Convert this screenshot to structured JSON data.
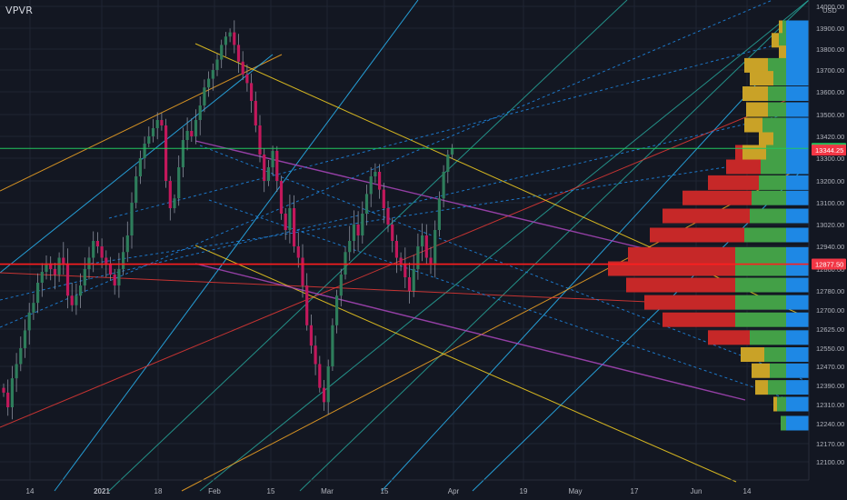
{
  "indicator": "VPVR",
  "chart_data": {
    "type": "candlestick",
    "currency": "USD",
    "y_ticks": [
      14000.0,
      13900.0,
      13800.0,
      13700.0,
      13600.0,
      13500.0,
      13420.0,
      13300.0,
      13200.0,
      13100.0,
      13020.0,
      12940.0,
      12860.0,
      12780.0,
      12700.0,
      12625.0,
      12550.0,
      12470.0,
      12390.0,
      12310.0,
      12240.0,
      12170.0,
      12100.0
    ],
    "y_tick_labels": [
      "14000.00",
      "13900.00",
      "13800.00",
      "13700.00",
      "13600.00",
      "13500.00",
      "13420.00",
      "13300.00",
      "13200.00",
      "13100.00",
      "13020.00",
      "12940.00",
      "12860.00",
      "12780.00",
      "12700.00",
      "12625.00",
      "12550.00",
      "12470.00",
      "12390.00",
      "12310.00",
      "12240.00",
      "12170.00",
      "12100.00"
    ],
    "x_labels": [
      "14",
      "2021",
      "18",
      "Feb",
      "15",
      "Mar",
      "15",
      "Apr",
      "19",
      "May",
      "17",
      "Jun",
      "14"
    ],
    "price_badges": [
      {
        "label": "13353.75",
        "value": 13353.75,
        "color": "#22c55e"
      },
      {
        "label": "13344.25",
        "value": 13344.25,
        "color": "#f23645"
      },
      {
        "label": "12877.50",
        "value": 12877.5,
        "color": "#f23645"
      }
    ],
    "horizontal_lines": [
      {
        "value": 13353.75,
        "color": "#22c55e"
      },
      {
        "value": 12877.5,
        "color": "#ff1e1e"
      }
    ],
    "closes": [
      12360,
      12300,
      12420,
      12480,
      12550,
      12620,
      12690,
      12730,
      12810,
      12850,
      12880,
      12860,
      12840,
      12900,
      12880,
      12760,
      12720,
      12760,
      12800,
      12860,
      12900,
      12960,
      12940,
      12900,
      12880,
      12840,
      12800,
      12860,
      12920,
      12980,
      13100,
      13220,
      13300,
      13380,
      13420,
      13450,
      13480,
      13460,
      13200,
      13080,
      13120,
      13260,
      13400,
      13440,
      13420,
      13480,
      13540,
      13620,
      13660,
      13700,
      13750,
      13820,
      13860,
      13880,
      13820,
      13740,
      13680,
      13640,
      13560,
      13460,
      13320,
      13200,
      13260,
      13340,
      13200,
      13060,
      13000,
      13080,
      12940,
      12900,
      12800,
      12640,
      12560,
      12480,
      12380,
      12320,
      12470,
      12640,
      12760,
      12840,
      12920,
      12960,
      13020,
      12980,
      13060,
      13140,
      13220,
      13240,
      13160,
      13080,
      13020,
      12960,
      12900,
      12880,
      12830,
      12780,
      12860,
      12940,
      12980,
      12900,
      12880,
      13000,
      13120,
      13240,
      13320,
      13355
    ],
    "volume_profile": [
      {
        "price": 13900,
        "red": 0,
        "green": 4,
        "gold": 4
      },
      {
        "price": 13840,
        "red": 0,
        "green": 8,
        "gold": 8
      },
      {
        "price": 13780,
        "red": 0,
        "green": 0,
        "gold": 8
      },
      {
        "price": 13720,
        "red": 0,
        "green": 20,
        "gold": 26
      },
      {
        "price": 13660,
        "red": 0,
        "green": 14,
        "gold": 26
      },
      {
        "price": 13590,
        "red": 0,
        "green": 20,
        "gold": 28
      },
      {
        "price": 13520,
        "red": 0,
        "green": 20,
        "gold": 24
      },
      {
        "price": 13460,
        "red": 0,
        "green": 26,
        "gold": 20
      },
      {
        "price": 13400,
        "red": 0,
        "green": 14,
        "gold": 16
      },
      {
        "price": 13330,
        "red": 8,
        "green": 22,
        "gold": 26
      },
      {
        "price": 13260,
        "red": 38,
        "green": 28,
        "gold": 0
      },
      {
        "price": 13190,
        "red": 56,
        "green": 30,
        "gold": 0
      },
      {
        "price": 13120,
        "red": 76,
        "green": 38,
        "gold": 0
      },
      {
        "price": 13050,
        "red": 96,
        "green": 40,
        "gold": 0
      },
      {
        "price": 12980,
        "red": 104,
        "green": 46,
        "gold": 0
      },
      {
        "price": 12910,
        "red": 118,
        "green": 56,
        "gold": 0
      },
      {
        "price": 12860,
        "red": 140,
        "green": 56,
        "gold": 0
      },
      {
        "price": 12800,
        "red": 120,
        "green": 56,
        "gold": 0
      },
      {
        "price": 12730,
        "red": 100,
        "green": 56,
        "gold": 0
      },
      {
        "price": 12660,
        "red": 80,
        "green": 56,
        "gold": 0
      },
      {
        "price": 12590,
        "red": 46,
        "green": 40,
        "gold": 0
      },
      {
        "price": 12520,
        "red": 0,
        "green": 24,
        "gold": 26
      },
      {
        "price": 12450,
        "red": 0,
        "green": 18,
        "gold": 20
      },
      {
        "price": 12380,
        "red": 0,
        "green": 20,
        "gold": 14
      },
      {
        "price": 12310,
        "red": 0,
        "green": 10,
        "gold": 4
      },
      {
        "price": 12240,
        "red": 0,
        "green": 6,
        "gold": 0
      }
    ],
    "colors": {
      "background": "#131722",
      "grid": "#1f2433",
      "up": "#2e7d5b",
      "down": "#c2185b",
      "vp_red": "#c62828",
      "vp_green": "#43a047",
      "vp_blue": "#1e88e5",
      "vp_gold": "#c9a227",
      "text": "#b2b5be"
    }
  }
}
